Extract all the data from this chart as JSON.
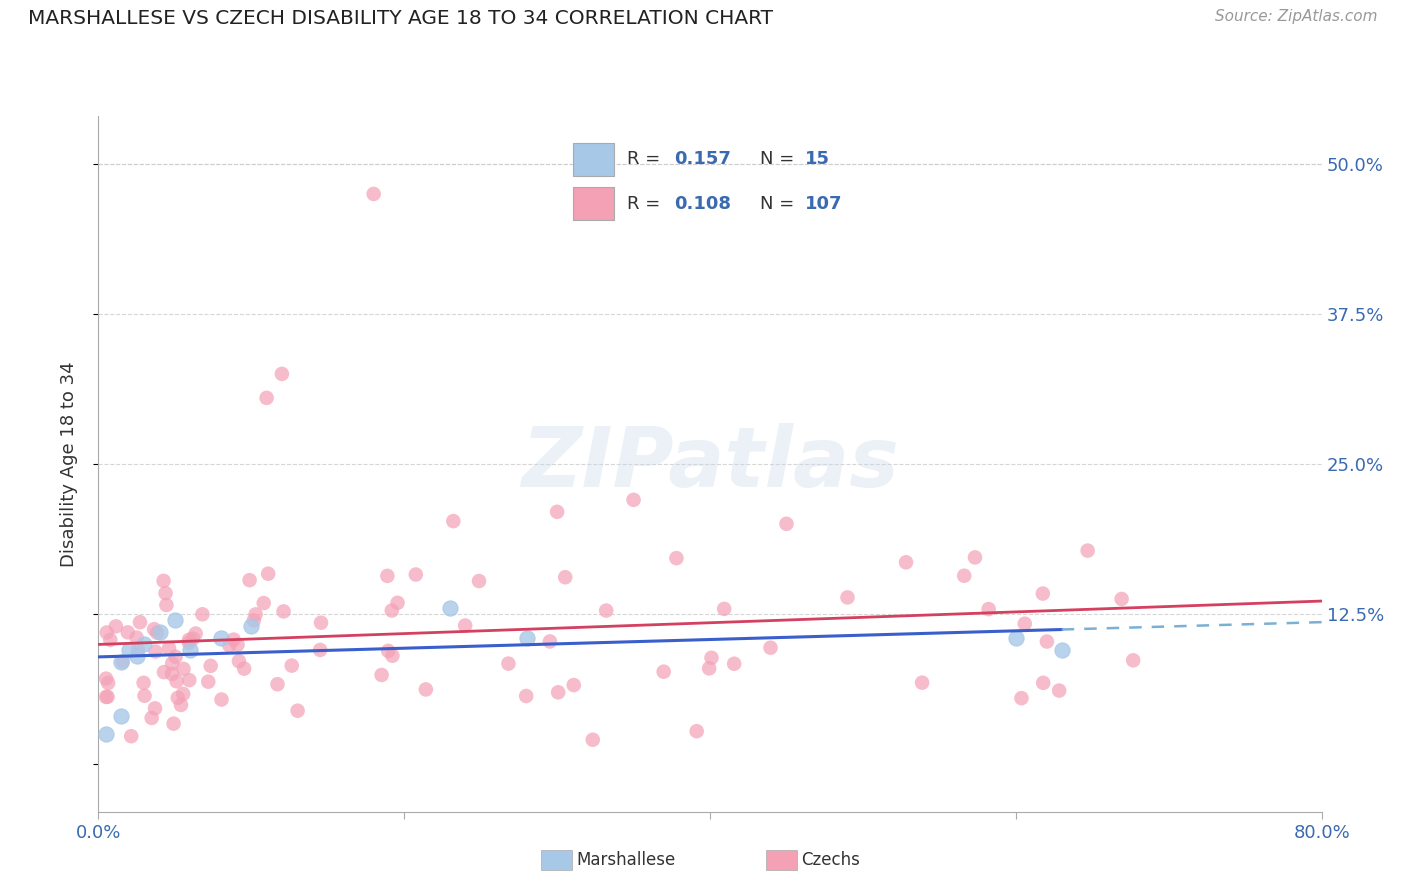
{
  "title": "MARSHALLESE VS CZECH DISABILITY AGE 18 TO 34 CORRELATION CHART",
  "source": "Source: ZipAtlas.com",
  "ylabel_label": "Disability Age 18 to 34",
  "x_min": 0.0,
  "x_max": 0.8,
  "y_min": -0.04,
  "y_max": 0.54,
  "grid_color": "#cccccc",
  "background_color": "#ffffff",
  "watermark": "ZIPatlas",
  "legend_r_marshallese": "0.157",
  "legend_n_marshallese": "15",
  "legend_r_czech": "0.108",
  "legend_n_czech": "107",
  "marshallese_color": "#a8c8e8",
  "czech_color": "#f4a0b5",
  "trend_marshallese_solid_color": "#3a5fcd",
  "trend_czech_color": "#d44060",
  "trend_marshallese_dashed_color": "#7bafd4"
}
